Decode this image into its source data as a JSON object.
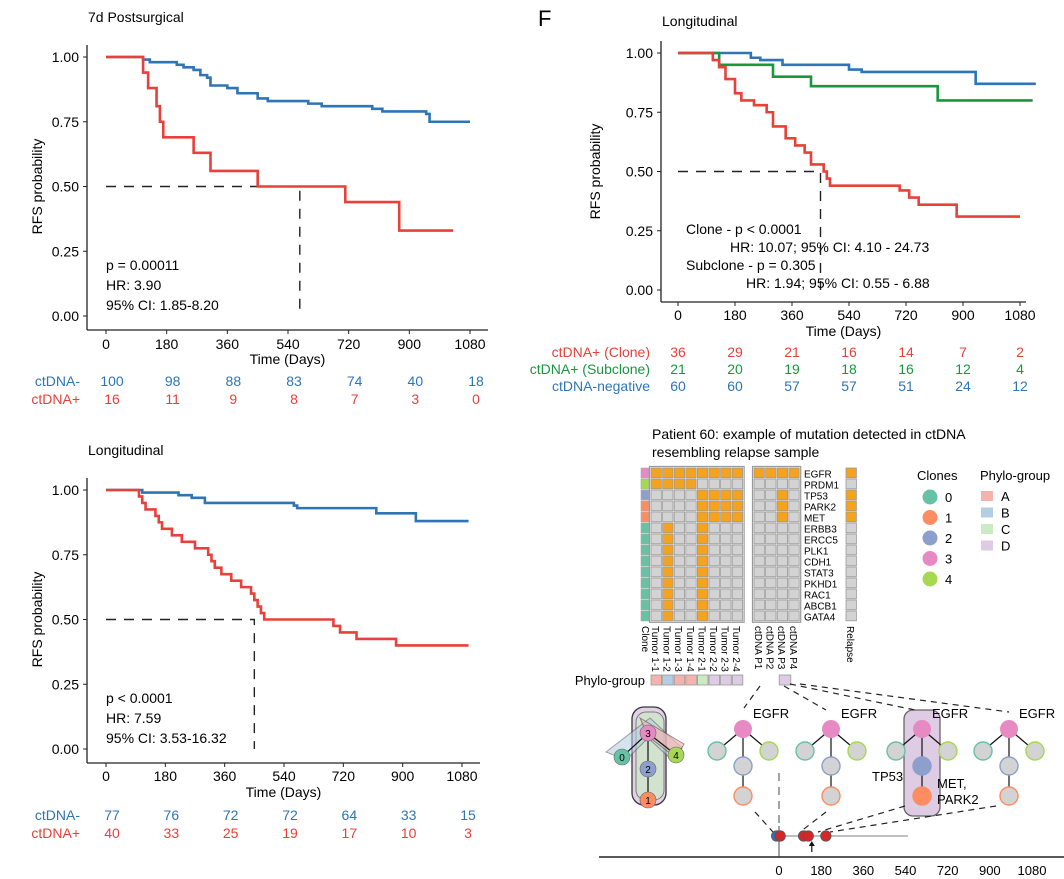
{
  "panel_label": "F",
  "colors": {
    "neg": "#2e75b6",
    "pos": "#e8403a",
    "subclone": "#1a9641",
    "mut": "#f5a31e",
    "nomut": "#d3d3d3",
    "cellborder": "#9a9a9a"
  },
  "chart_data": [
    {
      "id": "km_7d",
      "type": "line",
      "subtype": "kaplan-meier",
      "title": "7d Postsurgical",
      "xlabel": "Time (Days)",
      "ylabel": "RFS probability",
      "xlim": [
        0,
        1080
      ],
      "ylim": [
        0,
        1
      ],
      "xticks": [
        "0",
        "180",
        "360",
        "540",
        "720",
        "900",
        "1080"
      ],
      "yticks": [
        "0.00",
        "0.25",
        "0.50",
        "0.75",
        "1.00"
      ],
      "median_line": {
        "y": 0.5,
        "x": 575
      },
      "annotation": [
        "p = 0.00011",
        "HR: 3.90",
        "95% CI: 1.85-8.20"
      ],
      "series": [
        {
          "name": "ctDNA-",
          "color_key": "neg",
          "steps": [
            [
              0,
              1.0
            ],
            [
              110,
              0.99
            ],
            [
              130,
              0.98
            ],
            [
              210,
              0.97
            ],
            [
              230,
              0.96
            ],
            [
              260,
              0.95
            ],
            [
              280,
              0.93
            ],
            [
              300,
              0.92
            ],
            [
              310,
              0.89
            ],
            [
              360,
              0.88
            ],
            [
              390,
              0.86
            ],
            [
              450,
              0.84
            ],
            [
              480,
              0.83
            ],
            [
              600,
              0.82
            ],
            [
              640,
              0.81
            ],
            [
              790,
              0.8
            ],
            [
              820,
              0.79
            ],
            [
              950,
              0.78
            ],
            [
              960,
              0.75
            ],
            [
              1080,
              0.75
            ]
          ],
          "end": 1080
        },
        {
          "name": "ctDNA+",
          "color_key": "pos",
          "steps": [
            [
              0,
              1.0
            ],
            [
              110,
              0.94
            ],
            [
              125,
              0.88
            ],
            [
              150,
              0.81
            ],
            [
              160,
              0.75
            ],
            [
              170,
              0.69
            ],
            [
              260,
              0.63
            ],
            [
              310,
              0.56
            ],
            [
              450,
              0.5
            ],
            [
              710,
              0.44
            ],
            [
              870,
              0.33
            ],
            [
              1030,
              0.33
            ]
          ],
          "end": 1030
        }
      ],
      "risk_table": {
        "rows": [
          {
            "label": "ctDNA-",
            "color_key": "neg",
            "values": [
              100,
              98,
              88,
              83,
              74,
              40,
              18
            ]
          },
          {
            "label": "ctDNA+",
            "color_key": "pos",
            "values": [
              16,
              11,
              9,
              8,
              7,
              3,
              0
            ]
          }
        ]
      }
    },
    {
      "id": "km_long_left",
      "type": "line",
      "subtype": "kaplan-meier",
      "title": "Longitudinal",
      "xlabel": "Time (Days)",
      "ylabel": "RFS probability",
      "xlim": [
        0,
        1080
      ],
      "ylim": [
        0,
        1
      ],
      "xticks": [
        "0",
        "180",
        "360",
        "540",
        "720",
        "900",
        "1080"
      ],
      "yticks": [
        "0.00",
        "0.25",
        "0.50",
        "0.75",
        "1.00"
      ],
      "median_line": {
        "y": 0.5,
        "x": 450
      },
      "annotation": [
        "p < 0.0001",
        "HR: 7.59",
        "95% CI: 3.53-16.32"
      ],
      "series": [
        {
          "name": "ctDNA-",
          "color_key": "neg",
          "steps": [
            [
              0,
              1.0
            ],
            [
              110,
              0.99
            ],
            [
              220,
              0.98
            ],
            [
              260,
              0.97
            ],
            [
              300,
              0.95
            ],
            [
              570,
              0.94
            ],
            [
              580,
              0.93
            ],
            [
              820,
              0.91
            ],
            [
              940,
              0.88
            ],
            [
              1100,
              0.88
            ]
          ],
          "end": 1100
        },
        {
          "name": "ctDNA+",
          "color_key": "pos",
          "steps": [
            [
              0,
              1.0
            ],
            [
              100,
              0.975
            ],
            [
              110,
              0.95
            ],
            [
              120,
              0.925
            ],
            [
              150,
              0.9
            ],
            [
              160,
              0.875
            ],
            [
              170,
              0.85
            ],
            [
              200,
              0.825
            ],
            [
              230,
              0.8
            ],
            [
              270,
              0.775
            ],
            [
              310,
              0.75
            ],
            [
              320,
              0.725
            ],
            [
              330,
              0.7
            ],
            [
              350,
              0.675
            ],
            [
              380,
              0.65
            ],
            [
              410,
              0.625
            ],
            [
              440,
              0.6
            ],
            [
              450,
              0.575
            ],
            [
              460,
              0.55
            ],
            [
              470,
              0.525
            ],
            [
              480,
              0.5
            ],
            [
              690,
              0.475
            ],
            [
              710,
              0.45
            ],
            [
              760,
              0.425
            ],
            [
              880,
              0.4
            ],
            [
              1100,
              0.4
            ]
          ],
          "end": 1100
        }
      ],
      "risk_table": {
        "rows": [
          {
            "label": "ctDNA-",
            "color_key": "neg",
            "values": [
              77,
              76,
              72,
              72,
              64,
              33,
              15
            ]
          },
          {
            "label": "ctDNA+",
            "color_key": "pos",
            "values": [
              40,
              33,
              25,
              19,
              17,
              10,
              3
            ]
          }
        ]
      }
    },
    {
      "id": "km_long_f",
      "type": "line",
      "subtype": "kaplan-meier",
      "title": "Longitudinal",
      "xlabel": "Time (Days)",
      "ylabel": "RFS probability",
      "xlim": [
        0,
        1080
      ],
      "ylim": [
        0,
        1
      ],
      "xticks": [
        "0",
        "180",
        "360",
        "540",
        "720",
        "900",
        "1080"
      ],
      "yticks": [
        "0.00",
        "0.25",
        "0.50",
        "0.75",
        "1.00"
      ],
      "median_line": {
        "y": 0.5,
        "x": 450
      },
      "annotation": [
        "Clone - p < 0.0001",
        "HR: 10.07; 95% CI: 4.10 - 24.73",
        "Subclone - p = 0.305",
        "HR: 1.94; 95% CI: 0.55 - 6.88"
      ],
      "series": [
        {
          "name": "ctDNA-negative",
          "color_key": "neg",
          "steps": [
            [
              0,
              1.0
            ],
            [
              230,
              0.98
            ],
            [
              260,
              0.97
            ],
            [
              330,
              0.95
            ],
            [
              540,
              0.93
            ],
            [
              580,
              0.92
            ],
            [
              940,
              0.87
            ],
            [
              1130,
              0.87
            ]
          ],
          "end": 1130
        },
        {
          "name": "ctDNA+ (Subclone)",
          "color_key": "subclone",
          "steps": [
            [
              0,
              1.0
            ],
            [
              130,
              0.95
            ],
            [
              300,
              0.9
            ],
            [
              420,
              0.86
            ],
            [
              820,
              0.8
            ],
            [
              1120,
              0.8
            ]
          ],
          "end": 1120
        },
        {
          "name": "ctDNA+ (Clone)",
          "color_key": "pos",
          "steps": [
            [
              0,
              1.0
            ],
            [
              110,
              0.97
            ],
            [
              130,
              0.94
            ],
            [
              150,
              0.89
            ],
            [
              180,
              0.83
            ],
            [
              200,
              0.8
            ],
            [
              240,
              0.78
            ],
            [
              280,
              0.75
            ],
            [
              300,
              0.69
            ],
            [
              340,
              0.64
            ],
            [
              370,
              0.61
            ],
            [
              400,
              0.58
            ],
            [
              420,
              0.53
            ],
            [
              460,
              0.5
            ],
            [
              470,
              0.47
            ],
            [
              480,
              0.44
            ],
            [
              700,
              0.42
            ],
            [
              730,
              0.39
            ],
            [
              760,
              0.36
            ],
            [
              880,
              0.31
            ],
            [
              1080,
              0.31
            ]
          ],
          "end": 1080
        }
      ],
      "risk_table": {
        "rows": [
          {
            "label": "ctDNA+ (Clone)",
            "color_key": "pos",
            "values": [
              36,
              29,
              21,
              16,
              14,
              7,
              2
            ]
          },
          {
            "label": "ctDNA+ (Subclone)",
            "color_key": "subclone",
            "values": [
              21,
              20,
              19,
              18,
              16,
              12,
              4
            ]
          },
          {
            "label": "ctDNA-negative",
            "color_key": "neg",
            "values": [
              60,
              60,
              57,
              57,
              51,
              24,
              12
            ]
          }
        ]
      }
    },
    {
      "id": "mutation_heatmap",
      "type": "heatmap",
      "title": "Patient 60: example of mutation detected in ctDNA resembling relapse sample",
      "genes": [
        "EGFR",
        "PRDM1",
        "TP53",
        "PARK2",
        "MET",
        "ERBB3",
        "ERCC5",
        "PLK1",
        "CDH1",
        "STAT3",
        "PKHD1",
        "RAC1",
        "ABCB1",
        "GATA4"
      ],
      "gene_clone": [
        3,
        4,
        2,
        1,
        1,
        0,
        0,
        0,
        0,
        0,
        0,
        0,
        0,
        0
      ],
      "tumor_columns": [
        "Tumor 1-1",
        "Tumor 1-2",
        "Tumor 1-3",
        "Tumor 1-4",
        "Tumor 2-1",
        "Tumor 2-2",
        "Tumor 2-3",
        "Tumor 2-4"
      ],
      "ctdna_columns": [
        "ctDNA P1",
        "ctDNA P2",
        "ctDNA P3",
        "ctDNA P4"
      ],
      "relapse_column": "Relapse",
      "clone_column_label": "Clone",
      "tumor_matrix": [
        [
          1,
          1,
          1,
          1,
          1,
          1,
          1,
          1
        ],
        [
          1,
          1,
          1,
          1,
          0,
          0,
          0,
          0
        ],
        [
          0,
          0,
          0,
          0,
          1,
          1,
          1,
          1
        ],
        [
          0,
          0,
          0,
          0,
          1,
          1,
          1,
          1
        ],
        [
          0,
          0,
          0,
          0,
          1,
          1,
          1,
          1
        ],
        [
          0,
          1,
          0,
          0,
          1,
          0,
          0,
          0
        ],
        [
          0,
          1,
          0,
          0,
          1,
          0,
          0,
          0
        ],
        [
          0,
          1,
          0,
          0,
          1,
          0,
          0,
          0
        ],
        [
          0,
          1,
          0,
          0,
          1,
          0,
          0,
          0
        ],
        [
          0,
          1,
          0,
          0,
          1,
          0,
          0,
          0
        ],
        [
          0,
          1,
          0,
          0,
          1,
          0,
          0,
          0
        ],
        [
          0,
          1,
          0,
          0,
          1,
          0,
          0,
          0
        ],
        [
          0,
          1,
          0,
          0,
          1,
          0,
          0,
          0
        ],
        [
          0,
          1,
          0,
          0,
          1,
          0,
          0,
          0
        ]
      ],
      "ctdna_matrix": [
        [
          1,
          1,
          1,
          1
        ],
        [
          0,
          0,
          0,
          0
        ],
        [
          0,
          0,
          1,
          0
        ],
        [
          0,
          0,
          1,
          0
        ],
        [
          0,
          0,
          1,
          0
        ],
        [
          0,
          0,
          0,
          0
        ],
        [
          0,
          0,
          0,
          0
        ],
        [
          0,
          0,
          0,
          0
        ],
        [
          0,
          0,
          0,
          0
        ],
        [
          0,
          0,
          0,
          0
        ],
        [
          0,
          0,
          0,
          0
        ],
        [
          0,
          0,
          0,
          0
        ],
        [
          0,
          0,
          0,
          0
        ],
        [
          0,
          0,
          0,
          0
        ]
      ],
      "relapse_vector": [
        1,
        0,
        1,
        1,
        1,
        0,
        0,
        0,
        0,
        0,
        0,
        0,
        0,
        0
      ],
      "phylo_label": "Phylo-group",
      "phylo_tumor": [
        "A",
        "B",
        "A",
        "A",
        "C",
        "D",
        "D",
        "D"
      ],
      "phylo_ctdna_p3": "D"
    }
  ],
  "legends": {
    "clones": {
      "title": "Clones",
      "items": [
        {
          "label": "0",
          "color": "#66c2a5"
        },
        {
          "label": "1",
          "color": "#fc8d62"
        },
        {
          "label": "2",
          "color": "#8da0cb"
        },
        {
          "label": "3",
          "color": "#e78ac3"
        },
        {
          "label": "4",
          "color": "#a6d854"
        }
      ]
    },
    "phylo": {
      "title": "Phylo-group",
      "items": [
        {
          "label": "A",
          "color": "#f4b3ae"
        },
        {
          "label": "B",
          "color": "#b3cde3"
        },
        {
          "label": "C",
          "color": "#ccebc5"
        },
        {
          "label": "D",
          "color": "#decbe4"
        }
      ]
    }
  },
  "trees": {
    "gene_label": "EGFR",
    "tp53_label": "TP53",
    "met_label": "MET,",
    "park2_label": "PARK2",
    "timeline_ticks": [
      "0",
      "180",
      "360",
      "540",
      "720",
      "900",
      "1080"
    ]
  }
}
